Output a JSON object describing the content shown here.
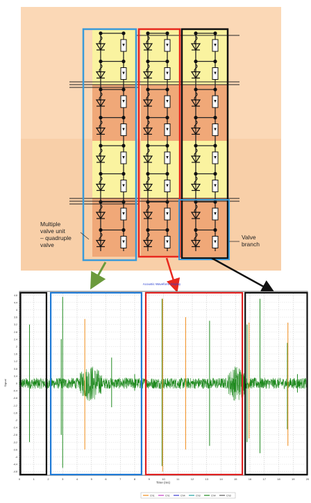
{
  "diagram": {
    "labels": {
      "multiple_valve": [
        "Multiple",
        "valve unit",
        "– quadruple",
        "valve"
      ],
      "valve_branch": [
        "Valve",
        "branch"
      ]
    },
    "colors": {
      "background_top": "#fbd8b6",
      "background_mid": "#f6c69c",
      "yellow_cell": "#faf3a0",
      "orange_cell": "#f0a878",
      "blue_box": "#3a9ad9",
      "red_box": "#e8281e",
      "black_box": "#111111",
      "green_arrow": "#6b9a3c"
    }
  },
  "plot": {
    "title": "Acoustic Waveform Display",
    "xlabel": "Time (ms)",
    "ylabel": "Signal",
    "legend": [
      "Ch1",
      "Ch1",
      "Ch4",
      "Ch3",
      "Ch4",
      "Ch3"
    ],
    "colors": {
      "signal_green": "#1f8a1f",
      "spike_orange": "#f08c1a",
      "grid": "#bbbbbb",
      "black_box": "#111111",
      "blue_box": "#1f7ad6",
      "red_box": "#e02020"
    }
  },
  "chart_data": {
    "type": "line",
    "title": "Acoustic Waveform Display",
    "xlabel": "Time (ms)",
    "ylabel": "Signal",
    "xlim": [
      0,
      20
    ],
    "ylim": [
      -5,
      5
    ],
    "x_ticks": [
      "0",
      "1",
      "2",
      "3",
      "4",
      "5",
      "6",
      "7",
      "8",
      "9",
      "10",
      "11",
      "12",
      "13",
      "14",
      "15",
      "16",
      "17",
      "18",
      "19",
      "20"
    ],
    "y_ticks": [
      "4.8",
      "4.4",
      "4",
      "3.6",
      "3.2",
      "2.8",
      "2.4",
      "2",
      "1.6",
      "1.2",
      "0.8",
      "0.4",
      "0",
      "-0.4",
      "-0.8",
      "-1.2",
      "-1.6",
      "-2",
      "-2.4",
      "-2.8",
      "-3.2",
      "-3.6",
      "-4",
      "-4.4",
      "-4.8"
    ],
    "grid": true,
    "series": [
      {
        "name": "Ch1",
        "color": "#1f8a1f",
        "noise_level": 0.3,
        "bursts": [
          [
            4.2,
            5.7,
            1.0
          ],
          [
            14.5,
            15.7,
            1.0
          ]
        ],
        "spikes": [
          [
            0.7,
            3.2,
            -3.2
          ],
          [
            2.9,
            2.4,
            -2.8
          ],
          [
            3.0,
            4.7,
            -4.6
          ],
          [
            6.4,
            1.4,
            -1.3
          ],
          [
            8.0,
            0.5,
            -0.4
          ],
          [
            9.9,
            4.6,
            -4.5
          ],
          [
            13.2,
            3.4,
            -3.4
          ],
          [
            15.8,
            3.2,
            -3.2
          ],
          [
            16.7,
            4.6,
            -3.8
          ],
          [
            18.6,
            2.2,
            -2.5
          ],
          [
            19.3,
            0.5,
            -0.5
          ]
        ]
      },
      {
        "name": "Ch3",
        "color": "#f08c1a",
        "spikes": [
          [
            4.5,
            3.5,
            -3.6
          ],
          [
            9.9,
            4.6,
            -4.8
          ],
          [
            11.5,
            3.6,
            -3.6
          ],
          [
            15.9,
            3.3,
            -3.0
          ],
          [
            18.6,
            3.3,
            -3.4
          ]
        ]
      }
    ],
    "highlight_boxes": [
      {
        "color": "black",
        "x": [
          0,
          1.9
        ]
      },
      {
        "color": "blue",
        "x": [
          2.1,
          8.5
        ]
      },
      {
        "color": "red",
        "x": [
          8.7,
          15.5
        ]
      },
      {
        "color": "black",
        "x": [
          15.6,
          20
        ]
      }
    ]
  }
}
